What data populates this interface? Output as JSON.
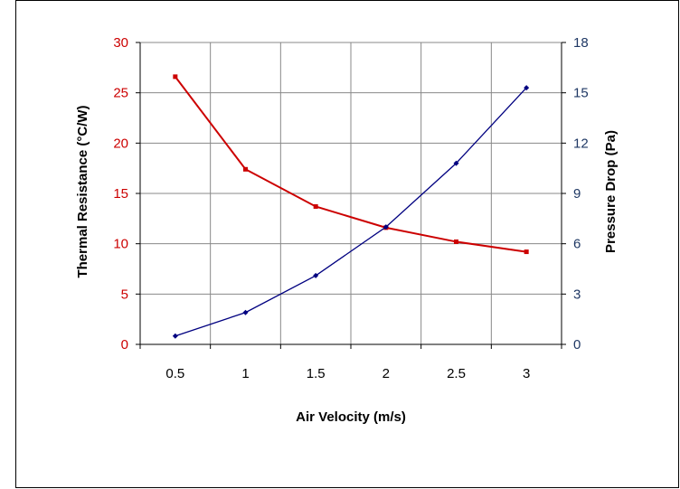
{
  "chart_data": {
    "type": "line",
    "title": "",
    "xlabel": "Air Velocity (m/s)",
    "ylabel_left": "Thermal Resistance (°C/W)",
    "ylabel_right": "Pressure Drop (Pa)",
    "x": [
      0.5,
      1,
      1.5,
      2,
      2.5,
      3
    ],
    "x_tick_labels": [
      "0.5",
      "1",
      "1.5",
      "2",
      "2.5",
      "3"
    ],
    "ylim_left": [
      0,
      30
    ],
    "y_left_ticks": [
      "0",
      "5",
      "10",
      "15",
      "20",
      "25",
      "30"
    ],
    "ylim_right": [
      0,
      18
    ],
    "y_right_ticks": [
      "0",
      "3",
      "6",
      "9",
      "12",
      "15",
      "18"
    ],
    "grid": true,
    "legend": "none",
    "series": [
      {
        "axis": "left",
        "color": "#cc0000",
        "marker": "square",
        "values": [
          26.6,
          17.4,
          13.7,
          11.6,
          10.2,
          9.2
        ]
      },
      {
        "axis": "right",
        "color": "#000080",
        "marker": "diamond",
        "values": [
          0.5,
          1.9,
          4.1,
          7.0,
          10.8,
          15.3
        ]
      }
    ],
    "colors": {
      "left_axis_text": "#cc0000",
      "right_axis_text": "#1f3864",
      "grid": "#888888"
    }
  }
}
